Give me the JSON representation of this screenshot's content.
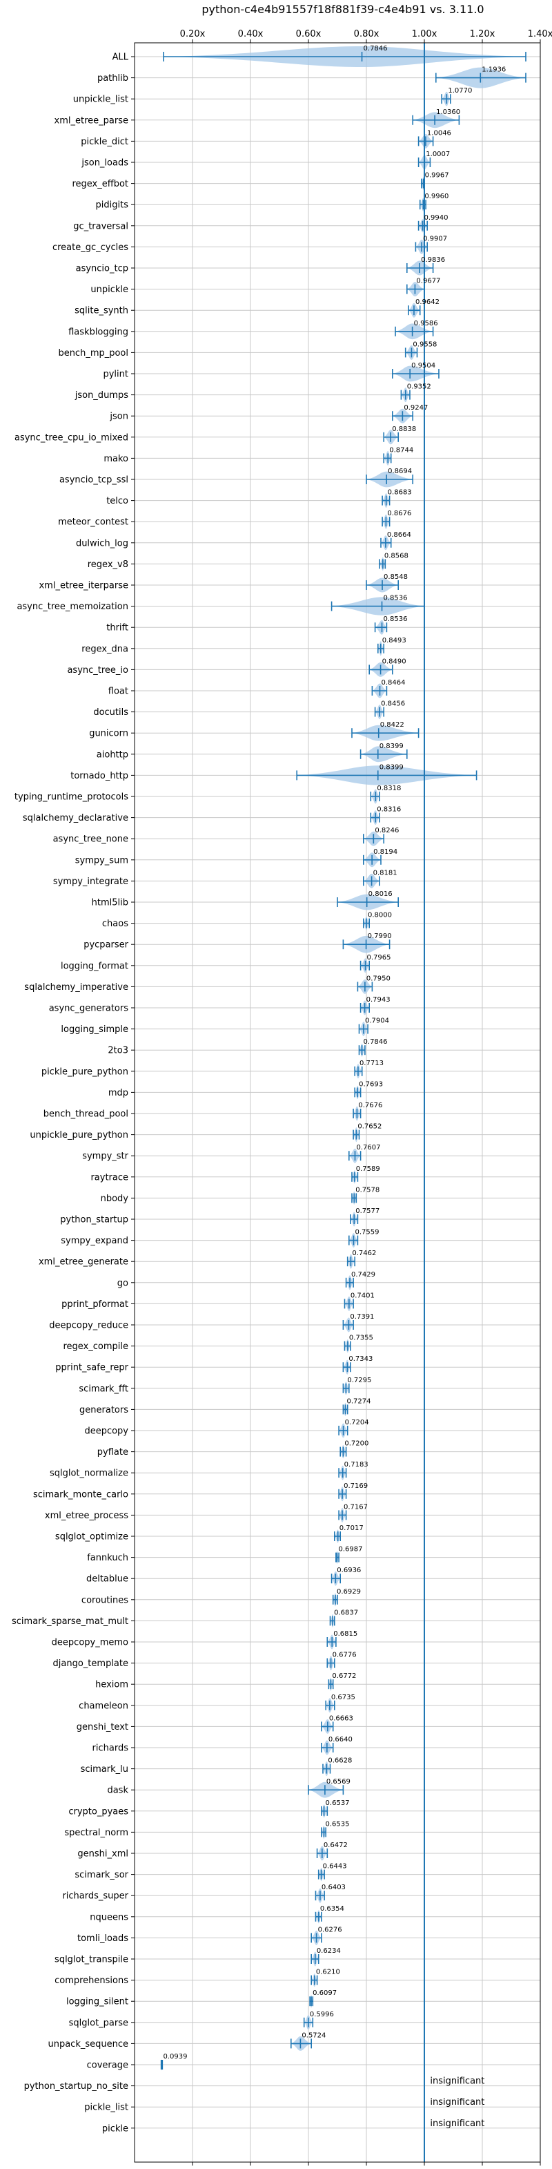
{
  "chart_data": {
    "type": "violin",
    "title": "python-c4e4b91557f18f881f39-c4e4b91 vs. 3.11.0",
    "xlim": [
      0.0,
      1.4
    ],
    "xticks": [
      "0.20x",
      "0.40x",
      "0.60x",
      "0.80x",
      "1.00x",
      "1.20x",
      "1.40x"
    ],
    "xtick_values": [
      0.2,
      0.4,
      0.6,
      0.8,
      1.0,
      1.2,
      1.4
    ],
    "reference_line": 1.0,
    "grid": true,
    "colors": {
      "violin": "#a6c8e8",
      "marker": "#1f77b4",
      "refline": "#1f77b4"
    },
    "insignificant_label": "insignificant",
    "rows": [
      {
        "name": "ALL",
        "median": 0.7846,
        "label": "0.7846",
        "min": 0.1,
        "max": 1.35,
        "width": 1.0
      },
      {
        "name": "pathlib",
        "median": 1.1936,
        "label": "1.1936",
        "min": 1.04,
        "max": 1.35,
        "width": 1.0
      },
      {
        "name": "unpickle_list",
        "median": 1.077,
        "label": "1.0770",
        "min": 1.06,
        "max": 1.09,
        "width": 0.5
      },
      {
        "name": "xml_etree_parse",
        "median": 1.036,
        "label": "1.0360",
        "min": 0.96,
        "max": 1.12,
        "width": 0.6
      },
      {
        "name": "pickle_dict",
        "median": 1.0046,
        "label": "1.0046",
        "min": 0.98,
        "max": 1.03,
        "width": 0.5
      },
      {
        "name": "json_loads",
        "median": 1.0007,
        "label": "1.0007",
        "min": 0.98,
        "max": 1.02,
        "width": 0.5
      },
      {
        "name": "regex_effbot",
        "median": 0.9967,
        "label": "0.9967",
        "min": 0.99,
        "max": 1.0,
        "width": 0.4
      },
      {
        "name": "pidigits",
        "median": 0.996,
        "label": "0.9960",
        "min": 0.985,
        "max": 1.005,
        "width": 0.4
      },
      {
        "name": "gc_traversal",
        "median": 0.994,
        "label": "0.9940",
        "min": 0.98,
        "max": 1.01,
        "width": 0.4
      },
      {
        "name": "create_gc_cycles",
        "median": 0.9907,
        "label": "0.9907",
        "min": 0.97,
        "max": 1.01,
        "width": 0.5
      },
      {
        "name": "asyncio_tcp",
        "median": 0.9836,
        "label": "0.9836",
        "min": 0.94,
        "max": 1.03,
        "width": 0.5
      },
      {
        "name": "unpickle",
        "median": 0.9677,
        "label": "0.9677",
        "min": 0.94,
        "max": 1.0,
        "width": 0.5
      },
      {
        "name": "sqlite_synth",
        "median": 0.9642,
        "label": "0.9642",
        "min": 0.945,
        "max": 0.985,
        "width": 0.5
      },
      {
        "name": "flaskblogging",
        "median": 0.9586,
        "label": "0.9586",
        "min": 0.9,
        "max": 1.03,
        "width": 0.6
      },
      {
        "name": "bench_mp_pool",
        "median": 0.9558,
        "label": "0.9558",
        "min": 0.935,
        "max": 0.975,
        "width": 0.5
      },
      {
        "name": "pylint",
        "median": 0.9504,
        "label": "0.9504",
        "min": 0.89,
        "max": 1.05,
        "width": 0.6
      },
      {
        "name": "json_dumps",
        "median": 0.9352,
        "label": "0.9352",
        "min": 0.92,
        "max": 0.95,
        "width": 0.5
      },
      {
        "name": "json",
        "median": 0.9247,
        "label": "0.9247",
        "min": 0.89,
        "max": 0.96,
        "width": 0.5
      },
      {
        "name": "async_tree_cpu_io_mixed",
        "median": 0.8838,
        "label": "0.8838",
        "min": 0.86,
        "max": 0.91,
        "width": 0.5
      },
      {
        "name": "mako",
        "median": 0.8744,
        "label": "0.8744",
        "min": 0.86,
        "max": 0.885,
        "width": 0.5
      },
      {
        "name": "asyncio_tcp_ssl",
        "median": 0.8694,
        "label": "0.8694",
        "min": 0.8,
        "max": 0.96,
        "width": 0.6
      },
      {
        "name": "telco",
        "median": 0.8683,
        "label": "0.8683",
        "min": 0.855,
        "max": 0.88,
        "width": 0.5
      },
      {
        "name": "meteor_contest",
        "median": 0.8676,
        "label": "0.8676",
        "min": 0.855,
        "max": 0.88,
        "width": 0.5
      },
      {
        "name": "dulwich_log",
        "median": 0.8664,
        "label": "0.8664",
        "min": 0.85,
        "max": 0.885,
        "width": 0.5
      },
      {
        "name": "regex_v8",
        "median": 0.8568,
        "label": "0.8568",
        "min": 0.845,
        "max": 0.865,
        "width": 0.4
      },
      {
        "name": "xml_etree_iterparse",
        "median": 0.8548,
        "label": "0.8548",
        "min": 0.8,
        "max": 0.91,
        "width": 0.5
      },
      {
        "name": "async_tree_memoization",
        "median": 0.8536,
        "label": "0.8536",
        "min": 0.68,
        "max": 1.0,
        "width": 0.8
      },
      {
        "name": "thrift",
        "median": 0.8536,
        "label": "0.8536",
        "min": 0.83,
        "max": 0.87,
        "width": 0.5
      },
      {
        "name": "regex_dna",
        "median": 0.8493,
        "label": "0.8493",
        "min": 0.84,
        "max": 0.86,
        "width": 0.5
      },
      {
        "name": "async_tree_io",
        "median": 0.849,
        "label": "0.8490",
        "min": 0.81,
        "max": 0.89,
        "width": 0.5
      },
      {
        "name": "float",
        "median": 0.8464,
        "label": "0.8464",
        "min": 0.82,
        "max": 0.87,
        "width": 0.5
      },
      {
        "name": "docutils",
        "median": 0.8456,
        "label": "0.8456",
        "min": 0.83,
        "max": 0.86,
        "width": 0.5
      },
      {
        "name": "gunicorn",
        "median": 0.8422,
        "label": "0.8422",
        "min": 0.75,
        "max": 0.98,
        "width": 0.6
      },
      {
        "name": "aiohttp",
        "median": 0.8399,
        "label": "0.8399",
        "min": 0.78,
        "max": 0.94,
        "width": 0.6
      },
      {
        "name": "tornado_http",
        "median": 0.8399,
        "label": "0.8399",
        "min": 0.56,
        "max": 1.18,
        "width": 0.9
      },
      {
        "name": "typing_runtime_protocols",
        "median": 0.8318,
        "label": "0.8318",
        "min": 0.815,
        "max": 0.845,
        "width": 0.5
      },
      {
        "name": "sqlalchemy_declarative",
        "median": 0.8316,
        "label": "0.8316",
        "min": 0.815,
        "max": 0.845,
        "width": 0.5
      },
      {
        "name": "async_tree_none",
        "median": 0.8246,
        "label": "0.8246",
        "min": 0.79,
        "max": 0.86,
        "width": 0.5
      },
      {
        "name": "sympy_sum",
        "median": 0.8194,
        "label": "0.8194",
        "min": 0.79,
        "max": 0.85,
        "width": 0.5
      },
      {
        "name": "sympy_integrate",
        "median": 0.8181,
        "label": "0.8181",
        "min": 0.79,
        "max": 0.845,
        "width": 0.5
      },
      {
        "name": "html5lib",
        "median": 0.8016,
        "label": "0.8016",
        "min": 0.7,
        "max": 0.91,
        "width": 0.6
      },
      {
        "name": "chaos",
        "median": 0.8,
        "label": "0.8000",
        "min": 0.79,
        "max": 0.81,
        "width": 0.4
      },
      {
        "name": "pycparser",
        "median": 0.799,
        "label": "0.7990",
        "min": 0.72,
        "max": 0.88,
        "width": 0.7
      },
      {
        "name": "logging_format",
        "median": 0.7965,
        "label": "0.7965",
        "min": 0.78,
        "max": 0.81,
        "width": 0.5
      },
      {
        "name": "sqlalchemy_imperative",
        "median": 0.795,
        "label": "0.7950",
        "min": 0.77,
        "max": 0.82,
        "width": 0.5
      },
      {
        "name": "async_generators",
        "median": 0.7943,
        "label": "0.7943",
        "min": 0.78,
        "max": 0.81,
        "width": 0.5
      },
      {
        "name": "logging_simple",
        "median": 0.7904,
        "label": "0.7904",
        "min": 0.775,
        "max": 0.805,
        "width": 0.5
      },
      {
        "name": "2to3",
        "median": 0.7846,
        "label": "0.7846",
        "min": 0.775,
        "max": 0.795,
        "width": 0.4
      },
      {
        "name": "pickle_pure_python",
        "median": 0.7713,
        "label": "0.7713",
        "min": 0.76,
        "max": 0.785,
        "width": 0.5
      },
      {
        "name": "mdp",
        "median": 0.7693,
        "label": "0.7693",
        "min": 0.76,
        "max": 0.78,
        "width": 0.4
      },
      {
        "name": "bench_thread_pool",
        "median": 0.7676,
        "label": "0.7676",
        "min": 0.755,
        "max": 0.78,
        "width": 0.5
      },
      {
        "name": "unpickle_pure_python",
        "median": 0.7652,
        "label": "0.7652",
        "min": 0.755,
        "max": 0.775,
        "width": 0.5
      },
      {
        "name": "sympy_str",
        "median": 0.7607,
        "label": "0.7607",
        "min": 0.74,
        "max": 0.78,
        "width": 0.5
      },
      {
        "name": "raytrace",
        "median": 0.7589,
        "label": "0.7589",
        "min": 0.75,
        "max": 0.77,
        "width": 0.4
      },
      {
        "name": "nbody",
        "median": 0.7578,
        "label": "0.7578",
        "min": 0.75,
        "max": 0.765,
        "width": 0.4
      },
      {
        "name": "python_startup",
        "median": 0.7577,
        "label": "0.7577",
        "min": 0.745,
        "max": 0.77,
        "width": 0.5
      },
      {
        "name": "sympy_expand",
        "median": 0.7559,
        "label": "0.7559",
        "min": 0.74,
        "max": 0.77,
        "width": 0.5
      },
      {
        "name": "xml_etree_generate",
        "median": 0.7462,
        "label": "0.7462",
        "min": 0.735,
        "max": 0.76,
        "width": 0.5
      },
      {
        "name": "go",
        "median": 0.7429,
        "label": "0.7429",
        "min": 0.73,
        "max": 0.755,
        "width": 0.5
      },
      {
        "name": "pprint_pformat",
        "median": 0.7401,
        "label": "0.7401",
        "min": 0.725,
        "max": 0.755,
        "width": 0.5
      },
      {
        "name": "deepcopy_reduce",
        "median": 0.7391,
        "label": "0.7391",
        "min": 0.72,
        "max": 0.755,
        "width": 0.5
      },
      {
        "name": "regex_compile",
        "median": 0.7355,
        "label": "0.7355",
        "min": 0.725,
        "max": 0.745,
        "width": 0.4
      },
      {
        "name": "pprint_safe_repr",
        "median": 0.7343,
        "label": "0.7343",
        "min": 0.72,
        "max": 0.745,
        "width": 0.5
      },
      {
        "name": "scimark_fft",
        "median": 0.7295,
        "label": "0.7295",
        "min": 0.72,
        "max": 0.74,
        "width": 0.4
      },
      {
        "name": "generators",
        "median": 0.7274,
        "label": "0.7274",
        "min": 0.72,
        "max": 0.735,
        "width": 0.4
      },
      {
        "name": "deepcopy",
        "median": 0.7204,
        "label": "0.7204",
        "min": 0.705,
        "max": 0.735,
        "width": 0.5
      },
      {
        "name": "pyflate",
        "median": 0.72,
        "label": "0.7200",
        "min": 0.71,
        "max": 0.73,
        "width": 0.4
      },
      {
        "name": "sqlglot_normalize",
        "median": 0.7183,
        "label": "0.7183",
        "min": 0.705,
        "max": 0.73,
        "width": 0.5
      },
      {
        "name": "scimark_monte_carlo",
        "median": 0.7169,
        "label": "0.7169",
        "min": 0.705,
        "max": 0.73,
        "width": 0.5
      },
      {
        "name": "xml_etree_process",
        "median": 0.7167,
        "label": "0.7167",
        "min": 0.705,
        "max": 0.73,
        "width": 0.5
      },
      {
        "name": "sqlglot_optimize",
        "median": 0.7017,
        "label": "0.7017",
        "min": 0.69,
        "max": 0.71,
        "width": 0.4
      },
      {
        "name": "fannkuch",
        "median": 0.6987,
        "label": "0.6987",
        "min": 0.695,
        "max": 0.705,
        "width": 0.4
      },
      {
        "name": "deltablue",
        "median": 0.6936,
        "label": "0.6936",
        "min": 0.68,
        "max": 0.71,
        "width": 0.5
      },
      {
        "name": "coroutines",
        "median": 0.6929,
        "label": "0.6929",
        "min": 0.685,
        "max": 0.7,
        "width": 0.4
      },
      {
        "name": "scimark_sparse_mat_mult",
        "median": 0.6837,
        "label": "0.6837",
        "min": 0.675,
        "max": 0.69,
        "width": 0.4
      },
      {
        "name": "deepcopy_memo",
        "median": 0.6815,
        "label": "0.6815",
        "min": 0.665,
        "max": 0.695,
        "width": 0.5
      },
      {
        "name": "django_template",
        "median": 0.6776,
        "label": "0.6776",
        "min": 0.665,
        "max": 0.69,
        "width": 0.5
      },
      {
        "name": "hexiom",
        "median": 0.6772,
        "label": "0.6772",
        "min": 0.67,
        "max": 0.685,
        "width": 0.4
      },
      {
        "name": "chameleon",
        "median": 0.6735,
        "label": "0.6735",
        "min": 0.66,
        "max": 0.69,
        "width": 0.5
      },
      {
        "name": "genshi_text",
        "median": 0.6663,
        "label": "0.6663",
        "min": 0.645,
        "max": 0.685,
        "width": 0.5
      },
      {
        "name": "richards",
        "median": 0.664,
        "label": "0.6640",
        "min": 0.645,
        "max": 0.685,
        "width": 0.5
      },
      {
        "name": "scimark_lu",
        "median": 0.6628,
        "label": "0.6628",
        "min": 0.65,
        "max": 0.675,
        "width": 0.5
      },
      {
        "name": "dask",
        "median": 0.6569,
        "label": "0.6569",
        "min": 0.6,
        "max": 0.72,
        "width": 0.6
      },
      {
        "name": "crypto_pyaes",
        "median": 0.6537,
        "label": "0.6537",
        "min": 0.645,
        "max": 0.665,
        "width": 0.4
      },
      {
        "name": "spectral_norm",
        "median": 0.6535,
        "label": "0.6535",
        "min": 0.645,
        "max": 0.66,
        "width": 0.4
      },
      {
        "name": "genshi_xml",
        "median": 0.6472,
        "label": "0.6472",
        "min": 0.63,
        "max": 0.665,
        "width": 0.5
      },
      {
        "name": "scimark_sor",
        "median": 0.6443,
        "label": "0.6443",
        "min": 0.635,
        "max": 0.655,
        "width": 0.4
      },
      {
        "name": "richards_super",
        "median": 0.6403,
        "label": "0.6403",
        "min": 0.625,
        "max": 0.655,
        "width": 0.5
      },
      {
        "name": "nqueens",
        "median": 0.6354,
        "label": "0.6354",
        "min": 0.625,
        "max": 0.645,
        "width": 0.4
      },
      {
        "name": "tomli_loads",
        "median": 0.6276,
        "label": "0.6276",
        "min": 0.61,
        "max": 0.645,
        "width": 0.5
      },
      {
        "name": "sqlglot_transpile",
        "median": 0.6234,
        "label": "0.6234",
        "min": 0.61,
        "max": 0.635,
        "width": 0.5
      },
      {
        "name": "comprehensions",
        "median": 0.621,
        "label": "0.6210",
        "min": 0.61,
        "max": 0.63,
        "width": 0.4
      },
      {
        "name": "logging_silent",
        "median": 0.6097,
        "label": "0.6097",
        "min": 0.605,
        "max": 0.615,
        "width": 0.4
      },
      {
        "name": "sqlglot_parse",
        "median": 0.5996,
        "label": "0.5996",
        "min": 0.585,
        "max": 0.615,
        "width": 0.5
      },
      {
        "name": "unpack_sequence",
        "median": 0.5724,
        "label": "0.5724",
        "min": 0.54,
        "max": 0.61,
        "width": 0.5
      },
      {
        "name": "coverage",
        "median": 0.0939,
        "label": "0.0939",
        "min": 0.092,
        "max": 0.096,
        "width": 0.3
      },
      {
        "name": "python_startup_no_site",
        "insignificant": true
      },
      {
        "name": "pickle_list",
        "insignificant": true
      },
      {
        "name": "pickle",
        "insignificant": true
      }
    ]
  }
}
